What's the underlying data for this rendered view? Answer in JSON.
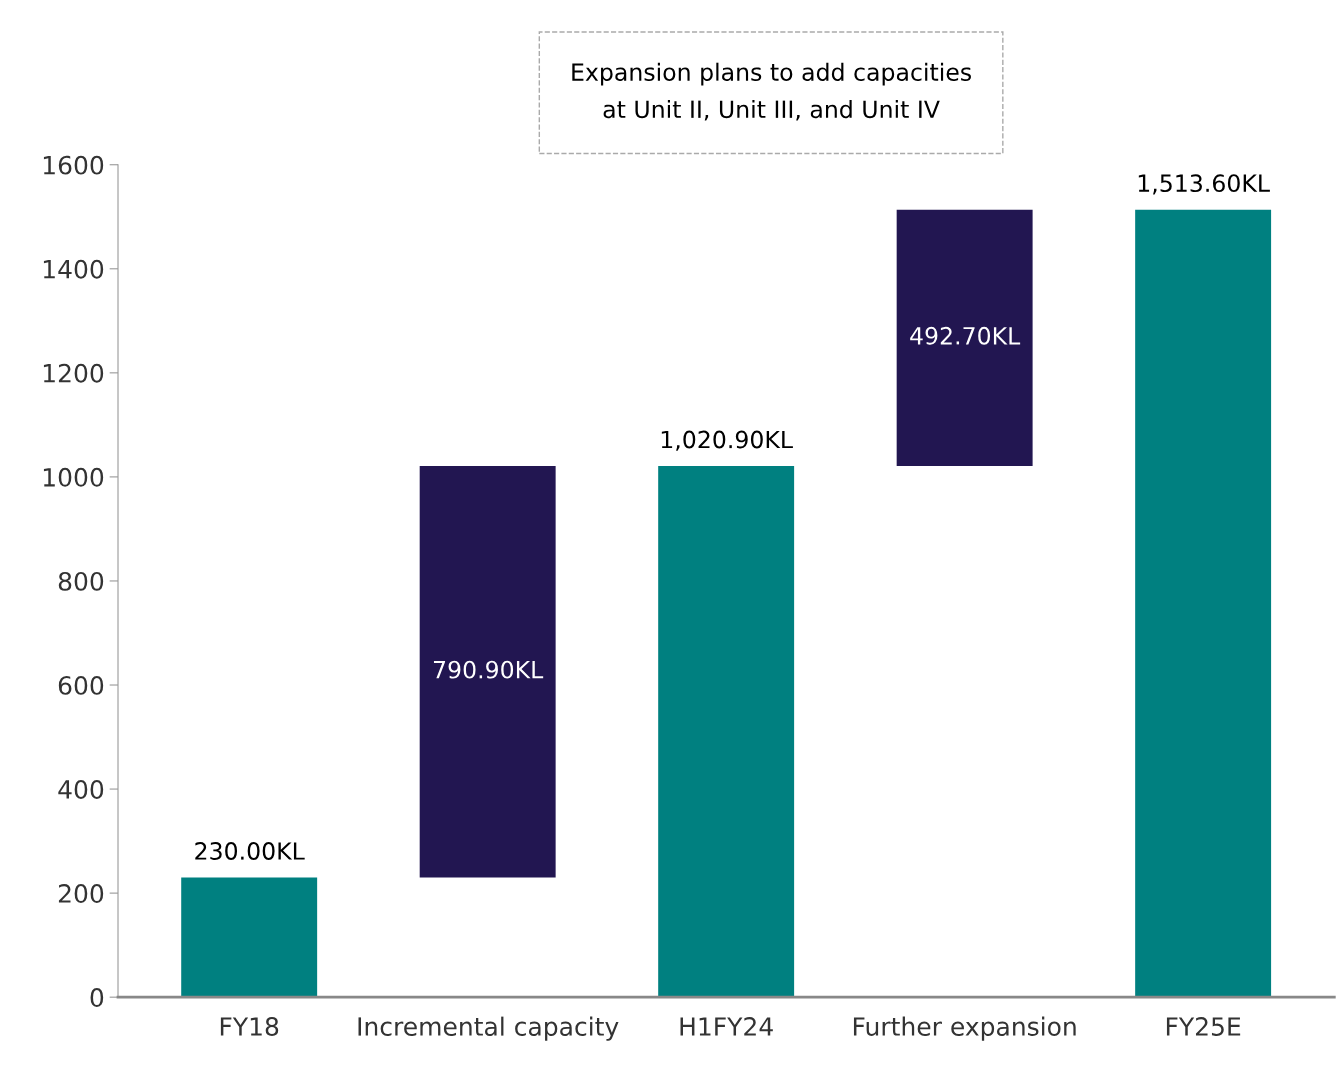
{
  "chart_data": {
    "type": "bar",
    "categories": [
      "FY18",
      "Incremental capacity",
      "H1FY24",
      "Further expansion",
      "FY25E"
    ],
    "values": [
      230.0,
      790.9,
      1020.9,
      492.7,
      1513.6
    ],
    "base": [
      0,
      230.0,
      0,
      1020.9,
      0
    ],
    "colors": [
      "#008080",
      "#221651",
      "#008080",
      "#221651",
      "#008080"
    ],
    "value_labels": [
      "230.00KL",
      "790.90KL",
      "1,020.90KL",
      "492.70KL",
      "1,513.60KL"
    ],
    "ylim": [
      0,
      1600
    ],
    "yticks": [
      0,
      200,
      400,
      600,
      800,
      1000,
      1200,
      1400,
      1600
    ],
    "grid": false,
    "legend": false,
    "annotations": [
      "Expansion plans to add capacities\nat Unit II, Unit III, and Unit IV"
    ]
  }
}
